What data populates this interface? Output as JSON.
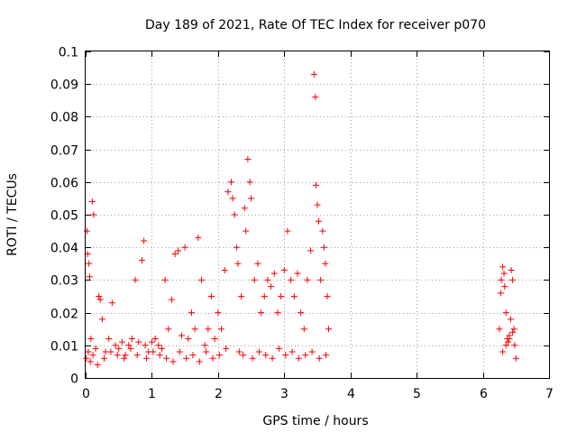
{
  "chart_data": {
    "type": "scatter",
    "title": "Day 189 of 2021, Rate Of TEC Index for receiver p070",
    "xlabel": "GPS time / hours",
    "ylabel": "ROTI / TECUs",
    "xlim": [
      0,
      7
    ],
    "ylim": [
      0,
      0.1
    ],
    "x_ticks": [
      "0",
      "1",
      "2",
      "3",
      "4",
      "5",
      "6",
      "7"
    ],
    "y_ticks": [
      "0",
      "0.01",
      "0.02",
      "0.03",
      "0.04",
      "0.05",
      "0.06",
      "0.07",
      "0.08",
      "0.09",
      "0.1"
    ],
    "grid": true,
    "marker": "+",
    "color": "#ff0000",
    "series": [
      {
        "name": "ROTI",
        "x": [
          0.02,
          0.03,
          0.05,
          0.06,
          0.08,
          0.1,
          0.12,
          0.15,
          0.2,
          0.22,
          0.25,
          0.3,
          0.35,
          0.4,
          0.45,
          0.5,
          0.55,
          0.6,
          0.65,
          0.7,
          0.75,
          0.8,
          0.85,
          0.88,
          0.9,
          0.95,
          1.0,
          1.05,
          1.1,
          1.15,
          1.2,
          1.25,
          1.3,
          1.35,
          1.4,
          1.45,
          1.5,
          1.55,
          1.6,
          1.65,
          1.7,
          1.75,
          1.8,
          1.85,
          1.9,
          1.95,
          2.0,
          2.05,
          2.1,
          2.15,
          2.2,
          2.22,
          2.25,
          2.28,
          2.3,
          2.35,
          2.4,
          2.42,
          2.45,
          2.48,
          2.5,
          2.55,
          2.6,
          2.65,
          2.7,
          2.75,
          2.8,
          2.85,
          2.9,
          2.95,
          3.0,
          3.05,
          3.1,
          3.15,
          3.2,
          3.25,
          3.3,
          3.35,
          3.4,
          3.45,
          3.47,
          3.48,
          3.5,
          3.52,
          3.55,
          3.58,
          3.6,
          3.62,
          3.65,
          3.67,
          0.01,
          0.04,
          0.07,
          0.11,
          0.18,
          0.28,
          0.38,
          0.48,
          0.58,
          0.68,
          0.78,
          0.92,
          1.02,
          1.12,
          1.22,
          1.32,
          1.42,
          1.52,
          1.62,
          1.72,
          1.82,
          1.92,
          2.02,
          2.12,
          2.32,
          2.38,
          2.52,
          2.62,
          2.72,
          2.82,
          2.92,
          3.02,
          3.12,
          3.22,
          3.32,
          3.42,
          3.53,
          3.63,
          6.25,
          6.27,
          6.28,
          6.3,
          6.32,
          6.33,
          6.35,
          6.37,
          6.38,
          6.4,
          6.42,
          6.43,
          6.45,
          6.47,
          6.48,
          6.5,
          6.3,
          6.35,
          6.4,
          6.45
        ],
        "y": [
          0.045,
          0.038,
          0.035,
          0.031,
          0.012,
          0.054,
          0.05,
          0.009,
          0.025,
          0.024,
          0.018,
          0.008,
          0.012,
          0.023,
          0.01,
          0.009,
          0.011,
          0.007,
          0.01,
          0.012,
          0.03,
          0.011,
          0.036,
          0.042,
          0.01,
          0.008,
          0.011,
          0.012,
          0.01,
          0.009,
          0.03,
          0.015,
          0.024,
          0.038,
          0.039,
          0.013,
          0.04,
          0.012,
          0.02,
          0.015,
          0.043,
          0.03,
          0.01,
          0.015,
          0.025,
          0.012,
          0.02,
          0.015,
          0.033,
          0.057,
          0.06,
          0.055,
          0.05,
          0.04,
          0.035,
          0.025,
          0.052,
          0.045,
          0.067,
          0.06,
          0.055,
          0.03,
          0.035,
          0.02,
          0.025,
          0.03,
          0.028,
          0.032,
          0.02,
          0.025,
          0.033,
          0.045,
          0.03,
          0.025,
          0.032,
          0.02,
          0.015,
          0.03,
          0.039,
          0.093,
          0.086,
          0.059,
          0.053,
          0.048,
          0.03,
          0.045,
          0.04,
          0.035,
          0.025,
          0.015,
          0.006,
          0.008,
          0.005,
          0.007,
          0.004,
          0.006,
          0.008,
          0.007,
          0.006,
          0.009,
          0.007,
          0.006,
          0.008,
          0.007,
          0.006,
          0.005,
          0.008,
          0.006,
          0.007,
          0.005,
          0.008,
          0.006,
          0.007,
          0.009,
          0.008,
          0.007,
          0.006,
          0.008,
          0.007,
          0.006,
          0.009,
          0.007,
          0.008,
          0.006,
          0.007,
          0.008,
          0.006,
          0.007,
          0.015,
          0.026,
          0.03,
          0.034,
          0.032,
          0.028,
          0.02,
          0.012,
          0.011,
          0.013,
          0.018,
          0.033,
          0.03,
          0.015,
          0.01,
          0.006,
          0.008,
          0.01,
          0.012,
          0.014
        ]
      }
    ]
  }
}
